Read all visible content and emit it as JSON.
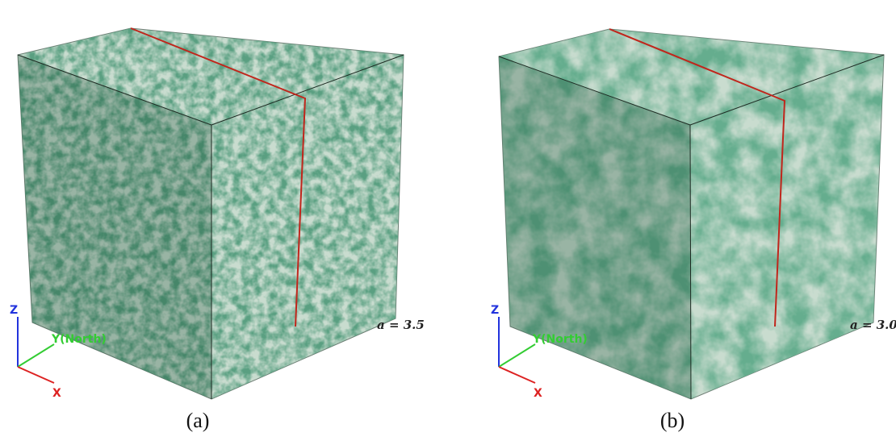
{
  "panels": [
    {
      "label": "(a)",
      "annotation": "a = 3.5",
      "axes": {
        "z": "Z",
        "y": "Y(North)",
        "x": "X"
      }
    },
    {
      "label": "(b)",
      "annotation": "a = 3.0",
      "axes": {
        "z": "Z",
        "y": "Y(North)",
        "x": "X"
      }
    }
  ]
}
